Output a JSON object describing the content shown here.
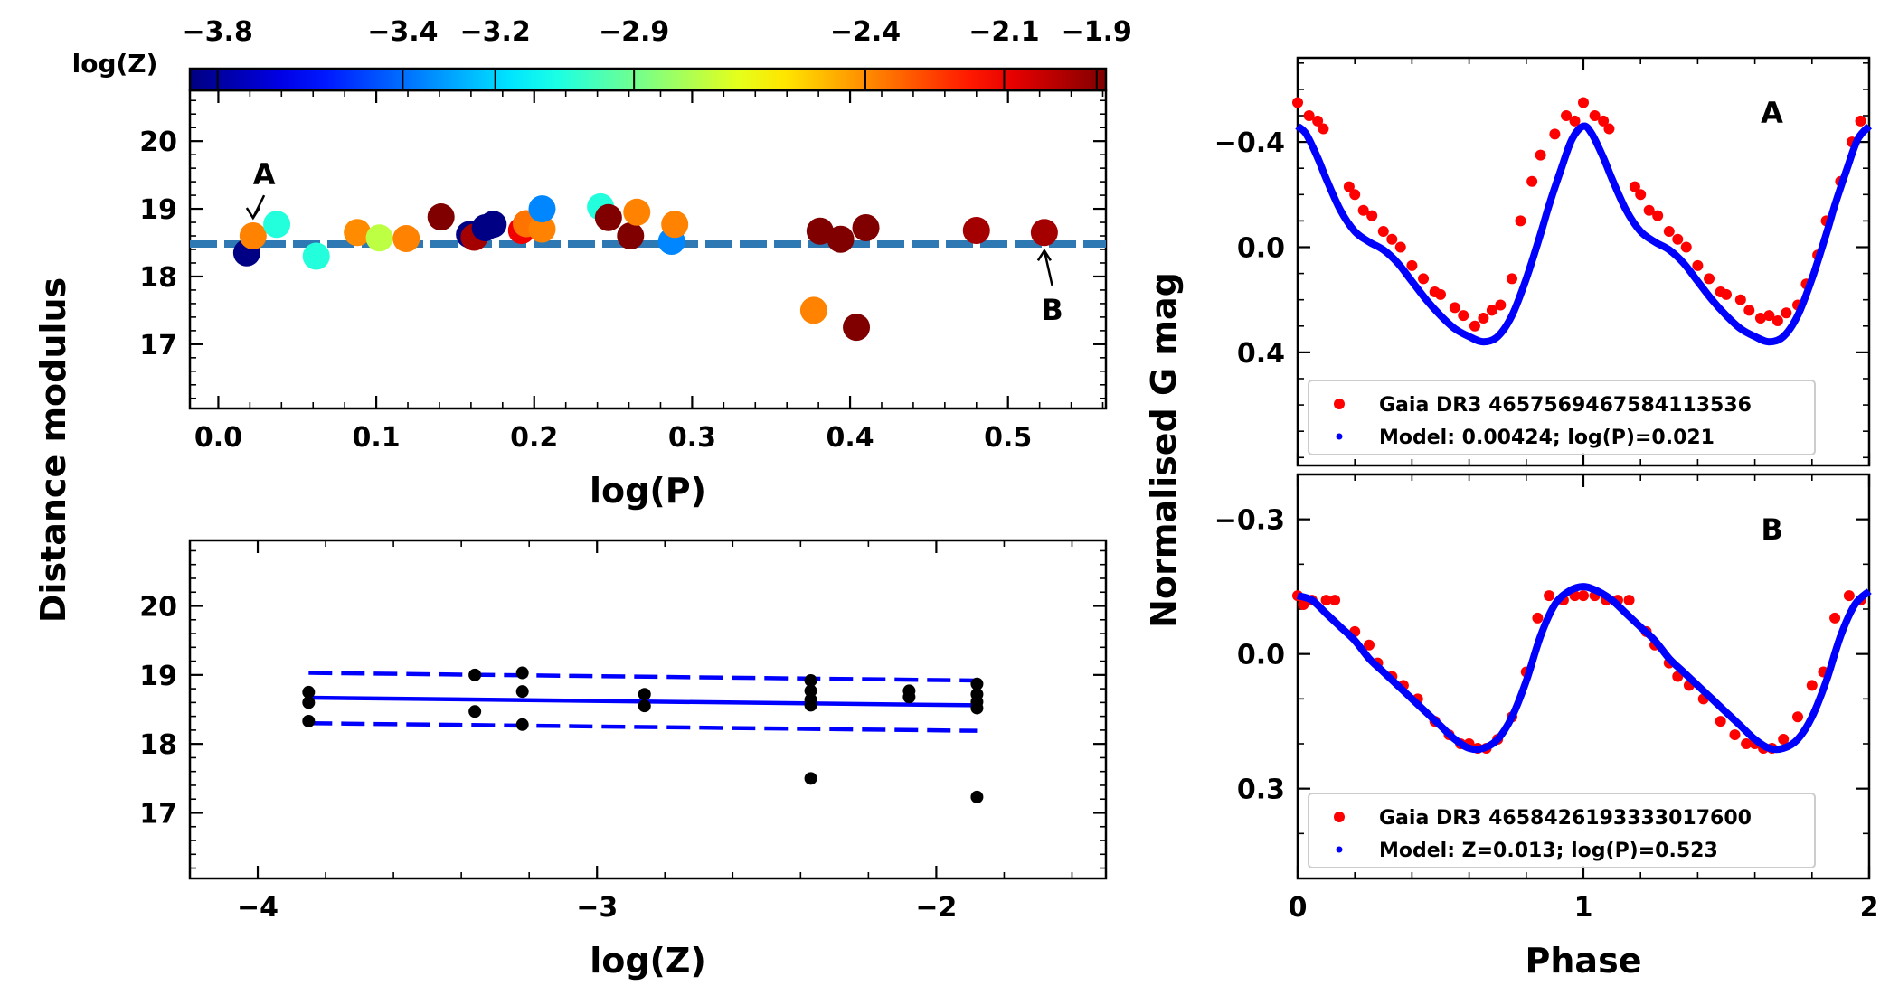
{
  "figure": {
    "shared_ylabel_left": "Distance modulus",
    "shared_ylabel_right": "Normalised G mag",
    "shared_xlabel_right": "Phase"
  },
  "colorbar": {
    "label": "log(Z)",
    "ticks": [
      "−3.8",
      "−3.4",
      "−3.2",
      "−2.9",
      "−2.4",
      "−2.1",
      "−1.9"
    ],
    "tick_values": [
      -3.8,
      -3.4,
      -3.2,
      -2.9,
      -2.4,
      -2.1,
      -1.9
    ],
    "range": [
      -3.86,
      -1.88
    ],
    "colormap": "jet"
  },
  "chart_data": [
    {
      "id": "top-left",
      "type": "scatter",
      "xlabel": "log(P)",
      "ylabel": "Distance modulus",
      "xlim": [
        -0.018,
        0.562
      ],
      "ylim": [
        16.05,
        20.75
      ],
      "xticks": [
        0.0,
        0.1,
        0.2,
        0.3,
        0.4,
        0.5
      ],
      "xtick_labels": [
        "0.0",
        "0.1",
        "0.2",
        "0.3",
        "0.4",
        "0.5"
      ],
      "yticks": [
        17,
        18,
        19,
        20
      ],
      "ytick_labels": [
        "17",
        "18",
        "19",
        "20"
      ],
      "reference_line": {
        "y": 18.48,
        "style": "dashed",
        "color": "#2e78b4"
      },
      "annotations": [
        {
          "text": "A",
          "point_x": 0.022,
          "point_y": 18.6,
          "label_x": 0.029,
          "label_y": 19.52
        },
        {
          "text": "B",
          "point_x": 0.523,
          "point_y": 18.65,
          "label_x": 0.528,
          "label_y": 17.52
        }
      ],
      "points": [
        {
          "x": 0.018,
          "y": 18.35,
          "logz": -3.85
        },
        {
          "x": 0.022,
          "y": 18.6,
          "logz": -2.38
        },
        {
          "x": 0.037,
          "y": 18.77,
          "logz": -3.05
        },
        {
          "x": 0.062,
          "y": 18.3,
          "logz": -3.05
        },
        {
          "x": 0.088,
          "y": 18.65,
          "logz": -2.4
        },
        {
          "x": 0.102,
          "y": 18.57,
          "logz": -2.75
        },
        {
          "x": 0.119,
          "y": 18.56,
          "logz": -2.38
        },
        {
          "x": 0.141,
          "y": 18.88,
          "logz": -1.88
        },
        {
          "x": 0.159,
          "y": 18.62,
          "logz": -3.85
        },
        {
          "x": 0.162,
          "y": 18.58,
          "logz": -1.95
        },
        {
          "x": 0.169,
          "y": 18.72,
          "logz": -3.85
        },
        {
          "x": 0.174,
          "y": 18.77,
          "logz": -3.85
        },
        {
          "x": 0.192,
          "y": 18.68,
          "logz": -2.1
        },
        {
          "x": 0.195,
          "y": 18.78,
          "logz": -2.35
        },
        {
          "x": 0.205,
          "y": 18.7,
          "logz": -2.38
        },
        {
          "x": 0.205,
          "y": 19.0,
          "logz": -3.35
        },
        {
          "x": 0.242,
          "y": 19.03,
          "logz": -3.05
        },
        {
          "x": 0.247,
          "y": 18.87,
          "logz": -1.88
        },
        {
          "x": 0.261,
          "y": 18.6,
          "logz": -1.88
        },
        {
          "x": 0.265,
          "y": 18.95,
          "logz": -2.38
        },
        {
          "x": 0.287,
          "y": 18.52,
          "logz": -3.35
        },
        {
          "x": 0.289,
          "y": 18.77,
          "logz": -2.38
        },
        {
          "x": 0.377,
          "y": 17.5,
          "logz": -2.38
        },
        {
          "x": 0.381,
          "y": 18.67,
          "logz": -1.88
        },
        {
          "x": 0.394,
          "y": 18.55,
          "logz": -1.88
        },
        {
          "x": 0.404,
          "y": 17.25,
          "logz": -1.88
        },
        {
          "x": 0.41,
          "y": 18.72,
          "logz": -1.88
        },
        {
          "x": 0.48,
          "y": 18.68,
          "logz": -1.95
        },
        {
          "x": 0.523,
          "y": 18.65,
          "logz": -1.95
        }
      ]
    },
    {
      "id": "bottom-left",
      "type": "scatter",
      "xlabel": "log(Z)",
      "ylabel": "Distance modulus",
      "xlim": [
        -4.2,
        -1.5
      ],
      "ylim": [
        16.05,
        20.95
      ],
      "xticks": [
        -4,
        -3,
        -2
      ],
      "xtick_labels": [
        "−4",
        "−3",
        "−2"
      ],
      "yticks": [
        17,
        18,
        19,
        20
      ],
      "ytick_labels": [
        "17",
        "18",
        "19",
        "20"
      ],
      "fit": {
        "x": [
          -3.85,
          -1.88
        ],
        "y": [
          18.67,
          18.56
        ],
        "color": "#0000ff"
      },
      "fit_upper": {
        "x": [
          -3.85,
          -1.88
        ],
        "y": [
          19.03,
          18.92
        ],
        "color": "#0000ff",
        "style": "dashed"
      },
      "fit_lower": {
        "x": [
          -3.85,
          -1.88
        ],
        "y": [
          18.3,
          18.19
        ],
        "color": "#0000ff",
        "style": "dashed"
      },
      "points": [
        {
          "x": -3.85,
          "y": 18.75
        },
        {
          "x": -3.85,
          "y": 18.6
        },
        {
          "x": -3.85,
          "y": 18.33
        },
        {
          "x": -3.36,
          "y": 19.0
        },
        {
          "x": -3.36,
          "y": 18.47
        },
        {
          "x": -3.22,
          "y": 19.03
        },
        {
          "x": -3.22,
          "y": 18.76
        },
        {
          "x": -3.22,
          "y": 18.28
        },
        {
          "x": -2.86,
          "y": 18.72
        },
        {
          "x": -2.86,
          "y": 18.55
        },
        {
          "x": -2.37,
          "y": 18.92
        },
        {
          "x": -2.37,
          "y": 18.77
        },
        {
          "x": -2.37,
          "y": 18.64
        },
        {
          "x": -2.37,
          "y": 18.56
        },
        {
          "x": -2.37,
          "y": 17.5
        },
        {
          "x": -2.08,
          "y": 18.77
        },
        {
          "x": -2.08,
          "y": 18.68
        },
        {
          "x": -1.88,
          "y": 18.87
        },
        {
          "x": -1.88,
          "y": 18.72
        },
        {
          "x": -1.88,
          "y": 18.61
        },
        {
          "x": -1.88,
          "y": 18.52
        },
        {
          "x": -1.88,
          "y": 17.23
        }
      ]
    },
    {
      "id": "right-top",
      "panel_label": "A",
      "type": "scatter",
      "xlabel": "Phase",
      "ylabel": "Normalised G mag",
      "xlim": [
        0,
        2
      ],
      "ylim": [
        0.83,
        -0.72
      ],
      "y_inverted": true,
      "xticks": [
        0,
        1,
        2
      ],
      "yticks": [
        -0.4,
        0.0,
        0.4
      ],
      "ytick_labels": [
        "−0.4",
        "0.0",
        "0.4"
      ],
      "legend": {
        "position": "lower-left",
        "entries": [
          {
            "label": "Gaia DR3 4657569467584113536",
            "color": "#ff0000"
          },
          {
            "label": "Model: 0.00424; log(P)=0.021",
            "color": "#0000ff"
          }
        ]
      },
      "model_curve": {
        "color": "#0000ff",
        "phase": [
          0.0,
          0.03,
          0.07,
          0.1,
          0.15,
          0.2,
          0.25,
          0.3,
          0.35,
          0.4,
          0.45,
          0.5,
          0.55,
          0.6,
          0.65,
          0.7,
          0.75,
          0.8,
          0.85,
          0.88,
          0.92,
          0.96,
          1.0,
          1.03,
          1.07,
          1.1,
          1.15,
          1.2,
          1.25,
          1.3,
          1.35,
          1.4,
          1.45,
          1.5,
          1.55,
          1.6,
          1.65,
          1.7,
          1.75,
          1.8,
          1.85,
          1.88,
          1.92,
          1.96,
          2.0
        ],
        "mag": [
          -0.46,
          -0.43,
          -0.34,
          -0.26,
          -0.14,
          -0.06,
          -0.02,
          0.01,
          0.06,
          0.13,
          0.2,
          0.26,
          0.31,
          0.34,
          0.36,
          0.34,
          0.26,
          0.12,
          -0.05,
          -0.16,
          -0.29,
          -0.41,
          -0.46,
          -0.43,
          -0.34,
          -0.26,
          -0.14,
          -0.06,
          -0.02,
          0.01,
          0.06,
          0.13,
          0.2,
          0.26,
          0.31,
          0.34,
          0.36,
          0.34,
          0.26,
          0.12,
          -0.05,
          -0.16,
          -0.29,
          -0.41,
          -0.46
        ]
      },
      "observed": {
        "color": "#ff0000",
        "phase": [
          0.0,
          0.04,
          0.07,
          0.09,
          0.18,
          0.2,
          0.23,
          0.26,
          0.3,
          0.33,
          0.36,
          0.4,
          0.44,
          0.48,
          0.5,
          0.55,
          0.58,
          0.62,
          0.65,
          0.68,
          0.71,
          0.75,
          0.78,
          0.82,
          0.85,
          0.9,
          0.94,
          0.97,
          1.0,
          1.04,
          1.07,
          1.09,
          1.18,
          1.2,
          1.23,
          1.26,
          1.3,
          1.33,
          1.36,
          1.4,
          1.44,
          1.48,
          1.5,
          1.55,
          1.58,
          1.62,
          1.65,
          1.68,
          1.71,
          1.75,
          1.78,
          1.82,
          1.85,
          1.9,
          1.94,
          1.97
        ],
        "mag": [
          -0.55,
          -0.5,
          -0.48,
          -0.45,
          -0.23,
          -0.2,
          -0.14,
          -0.12,
          -0.06,
          -0.03,
          0.0,
          0.07,
          0.12,
          0.17,
          0.18,
          0.23,
          0.26,
          0.3,
          0.27,
          0.24,
          0.22,
          0.12,
          -0.1,
          -0.25,
          -0.35,
          -0.43,
          -0.5,
          -0.48,
          -0.55,
          -0.5,
          -0.48,
          -0.45,
          -0.23,
          -0.2,
          -0.14,
          -0.12,
          -0.06,
          -0.03,
          0.0,
          0.07,
          0.12,
          0.17,
          0.18,
          0.2,
          0.24,
          0.27,
          0.26,
          0.28,
          0.25,
          0.22,
          0.14,
          0.03,
          -0.1,
          -0.25,
          -0.4,
          -0.48
        ]
      }
    },
    {
      "id": "right-bottom",
      "panel_label": "B",
      "type": "scatter",
      "xlabel": "Phase",
      "ylabel": "Normalised G mag",
      "xlim": [
        0,
        2
      ],
      "ylim": [
        0.5,
        -0.4
      ],
      "y_inverted": true,
      "xticks": [
        0,
        1,
        2
      ],
      "xtick_labels": [
        "0",
        "1",
        "2"
      ],
      "yticks": [
        -0.3,
        0.0,
        0.3
      ],
      "ytick_labels": [
        "−0.3",
        "0.0",
        "0.3"
      ],
      "legend": {
        "position": "lower-left",
        "entries": [
          {
            "label": "Gaia DR3 4658426193333017600",
            "color": "#ff0000"
          },
          {
            "label": "Model: Z=0.013; log(P)=0.523",
            "color": "#0000ff"
          }
        ]
      },
      "model_curve": {
        "color": "#0000ff",
        "phase": [
          0.0,
          0.05,
          0.1,
          0.15,
          0.2,
          0.25,
          0.3,
          0.35,
          0.4,
          0.45,
          0.5,
          0.55,
          0.6,
          0.65,
          0.7,
          0.75,
          0.8,
          0.85,
          0.9,
          0.95,
          1.0,
          1.05,
          1.1,
          1.15,
          1.2,
          1.25,
          1.3,
          1.35,
          1.4,
          1.45,
          1.5,
          1.55,
          1.6,
          1.65,
          1.7,
          1.75,
          1.8,
          1.85,
          1.9,
          1.95,
          2.0
        ],
        "mag": [
          -0.13,
          -0.12,
          -0.09,
          -0.06,
          -0.03,
          0.01,
          0.04,
          0.07,
          0.1,
          0.13,
          0.16,
          0.19,
          0.21,
          0.21,
          0.19,
          0.14,
          0.06,
          -0.04,
          -0.11,
          -0.14,
          -0.15,
          -0.14,
          -0.12,
          -0.09,
          -0.06,
          -0.03,
          0.01,
          0.04,
          0.07,
          0.1,
          0.13,
          0.16,
          0.19,
          0.21,
          0.21,
          0.19,
          0.14,
          0.06,
          -0.04,
          -0.11,
          -0.14
        ]
      },
      "observed": {
        "color": "#ff0000",
        "phase": [
          0.0,
          0.02,
          0.05,
          0.1,
          0.13,
          0.2,
          0.25,
          0.28,
          0.33,
          0.37,
          0.42,
          0.48,
          0.53,
          0.57,
          0.6,
          0.63,
          0.66,
          0.7,
          0.75,
          0.8,
          0.84,
          0.88,
          0.93,
          0.97,
          1.0,
          1.04,
          1.08,
          1.12,
          1.16,
          1.22,
          1.25,
          1.3,
          1.33,
          1.37,
          1.42,
          1.48,
          1.53,
          1.57,
          1.6,
          1.63,
          1.66,
          1.7,
          1.75,
          1.8,
          1.84,
          1.88,
          1.93,
          1.97
        ],
        "mag": [
          -0.13,
          -0.11,
          -0.12,
          -0.12,
          -0.12,
          -0.05,
          -0.02,
          0.02,
          0.05,
          0.07,
          0.1,
          0.15,
          0.18,
          0.2,
          0.2,
          0.21,
          0.21,
          0.19,
          0.14,
          0.04,
          -0.08,
          -0.13,
          -0.12,
          -0.13,
          -0.13,
          -0.13,
          -0.12,
          -0.12,
          -0.12,
          -0.05,
          -0.02,
          0.02,
          0.05,
          0.07,
          0.1,
          0.15,
          0.18,
          0.2,
          0.2,
          0.21,
          0.21,
          0.19,
          0.14,
          0.07,
          0.04,
          -0.08,
          -0.13,
          -0.12
        ]
      }
    }
  ]
}
